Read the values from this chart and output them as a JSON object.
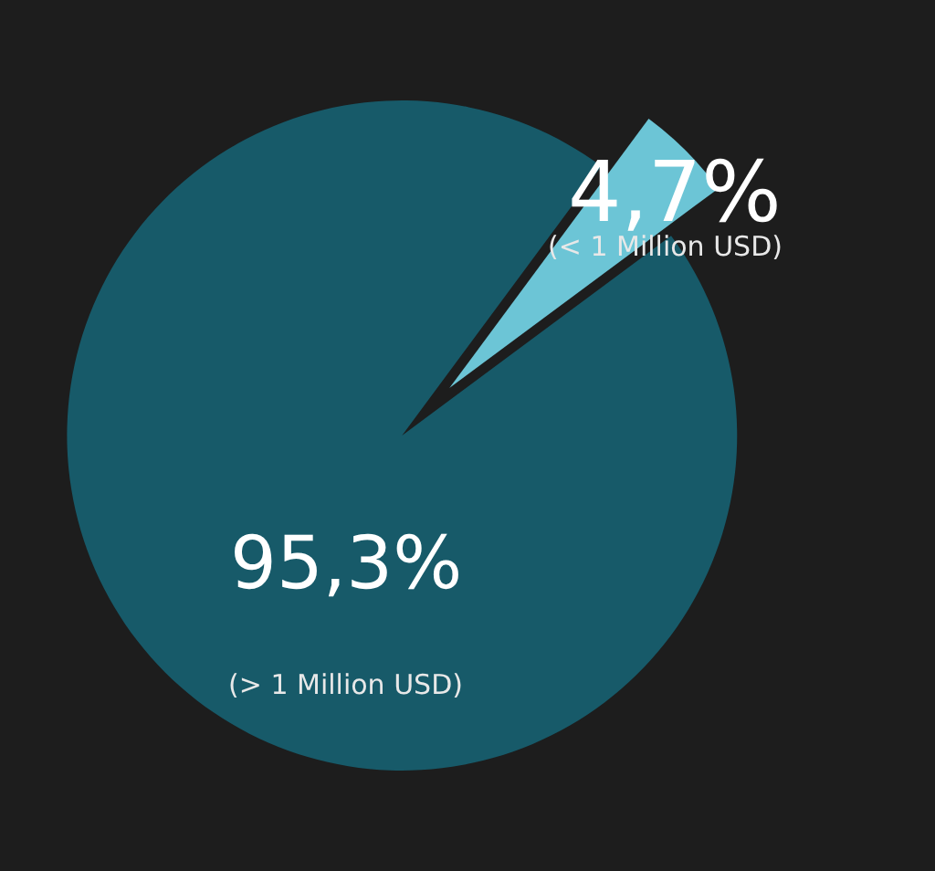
{
  "chart_data": {
    "type": "pie",
    "categories": [
      "(< 1 Million USD)",
      "(> 1 Million USD)"
    ],
    "values": [
      4.7,
      95.3
    ],
    "colors": [
      "#6cc5d6",
      "#175a69"
    ],
    "value_labels": [
      "4,7%",
      "95,3%"
    ],
    "legend": false
  }
}
